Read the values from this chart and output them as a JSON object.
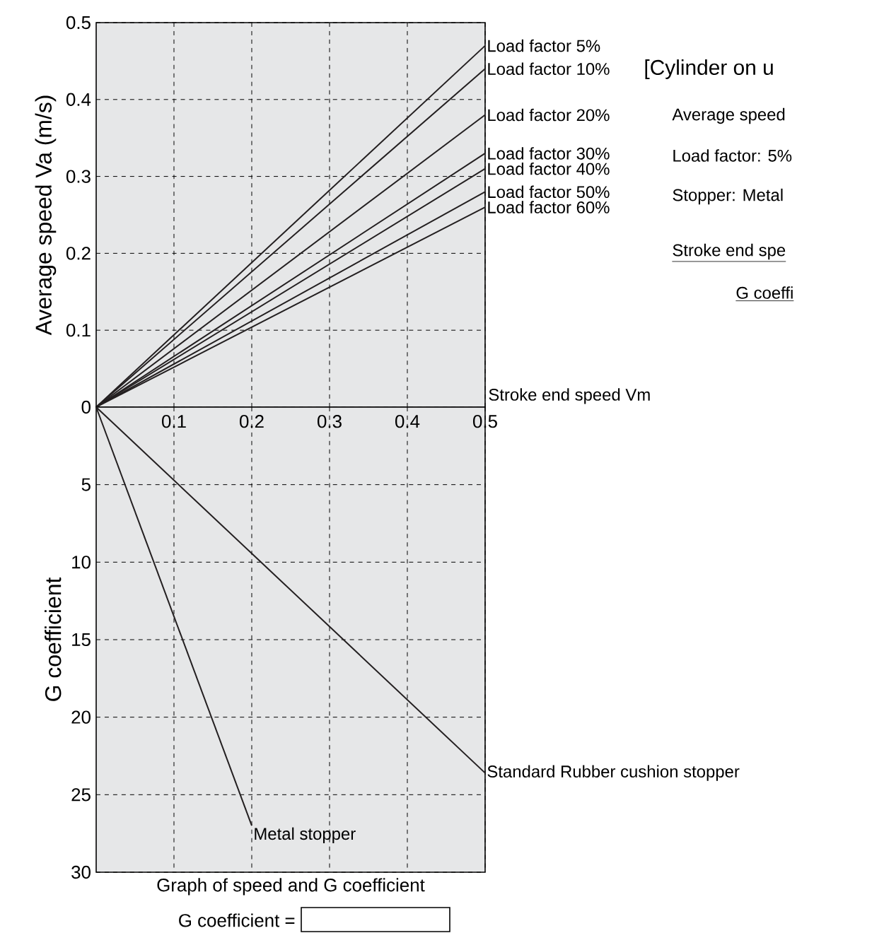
{
  "chart_data": [
    {
      "type": "line",
      "x": [
        0,
        0.5
      ],
      "xlim": [
        0,
        0.5
      ],
      "ylim": [
        0,
        0.5
      ],
      "xticks": [
        0.1,
        0.2,
        0.3,
        0.4,
        0.5
      ],
      "yticks": [
        0,
        0.1,
        0.2,
        0.3,
        0.4,
        0.5
      ],
      "tick_labels": "y",
      "grid": true,
      "ylabel": "Average speed Va (m/s)",
      "xlabel": "Stroke end speed  Vm",
      "line_style": "solid",
      "series": [
        {
          "name": "Load factor 5%",
          "color": "#231f20",
          "values": [
            0,
            0.47
          ]
        },
        {
          "name": "Load factor 10%",
          "color": "#231f20",
          "values": [
            0,
            0.44
          ]
        },
        {
          "name": "Load factor 20%",
          "color": "#231f20",
          "values": [
            0,
            0.38
          ]
        },
        {
          "name": "Load factor 30%",
          "color": "#231f20",
          "values": [
            0,
            0.33
          ]
        },
        {
          "name": "Load factor 40%",
          "color": "#231f20",
          "values": [
            0,
            0.31
          ]
        },
        {
          "name": "Load factor 50%",
          "color": "#231f20",
          "values": [
            0,
            0.28
          ]
        },
        {
          "name": "Load factor 60%",
          "color": "#231f20",
          "values": [
            0,
            0.26
          ]
        }
      ]
    },
    {
      "type": "line",
      "xlim": [
        0,
        0.5
      ],
      "ylim": [
        30,
        0
      ],
      "xticks": [
        0.1,
        0.2,
        0.3,
        0.4,
        0.5
      ],
      "yticks": [
        5,
        10,
        15,
        20,
        25,
        30
      ],
      "grid": true,
      "ylabel": "G coefficient",
      "xlabel": "Graph of speed and G coefficient",
      "annotations": [
        "G coefficient ="
      ],
      "line_style": "solid",
      "series": [
        {
          "name": "Metal stopper",
          "color": "#231f20",
          "x": [
            0,
            0.2
          ],
          "values": [
            0,
            27
          ]
        },
        {
          "name": "Standard Rubber cushion stopper",
          "color": "#231f20",
          "x": [
            0,
            0.5
          ],
          "values": [
            0,
            23.6
          ]
        }
      ]
    },
    {
      "type": "other",
      "title": "[Cylinder on u",
      "annotations": [
        "Average speed",
        "Load factor: 5%",
        "Stopper: Metal",
        "Stroke end spe",
        "G coeffi"
      ]
    }
  ]
}
